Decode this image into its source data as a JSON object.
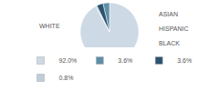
{
  "chart_data": {
    "type": "pie",
    "categories": [
      "WHITE",
      "ASIAN",
      "HISPANIC",
      "BLACK"
    ],
    "values": [
      92.0,
      3.6,
      3.6,
      0.8
    ],
    "value_labels": [
      "92.0%",
      "3.6%",
      "3.6%",
      "0.8%"
    ],
    "colors": [
      "#cdd9e5",
      "#5e8fa8",
      "#2b5370",
      "#bfcdd8"
    ],
    "legend": "bottom"
  }
}
